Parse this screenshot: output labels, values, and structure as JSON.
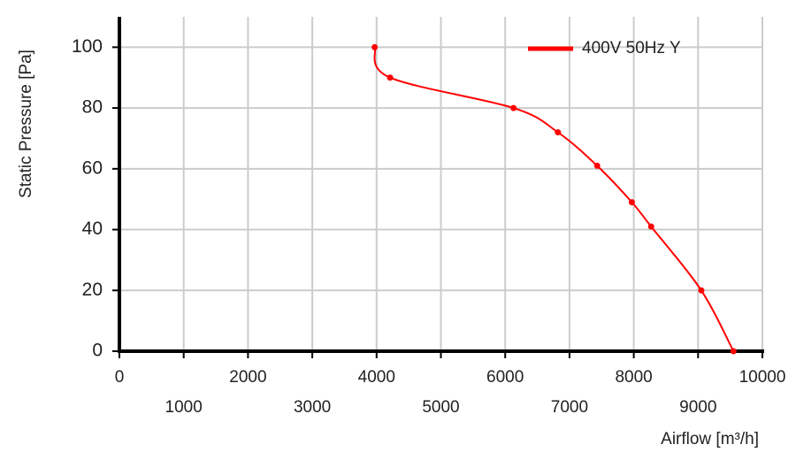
{
  "chart_data": {
    "type": "line",
    "x_label": "Airflow [m³/h]",
    "y_label": "Static Pressure [Pa]",
    "series": [
      {
        "name": "400V 50Hz Y",
        "color": "#ff0000",
        "x": [
          3970,
          4210,
          6130,
          6820,
          7430,
          7970,
          8270,
          9050,
          9550
        ],
        "values": [
          100,
          90,
          80,
          72,
          61,
          49,
          41,
          20,
          0
        ]
      }
    ],
    "legend_text_color": "#e0208c",
    "legend_position": "upper right",
    "xlim": [
      0,
      10000
    ],
    "xticks": [
      0,
      1000,
      2000,
      3000,
      4000,
      5000,
      6000,
      7000,
      8000,
      9000,
      10000
    ],
    "ylim": [
      0,
      110
    ],
    "yticks": [
      0,
      20,
      40,
      60,
      80,
      100
    ],
    "grid": true
  }
}
